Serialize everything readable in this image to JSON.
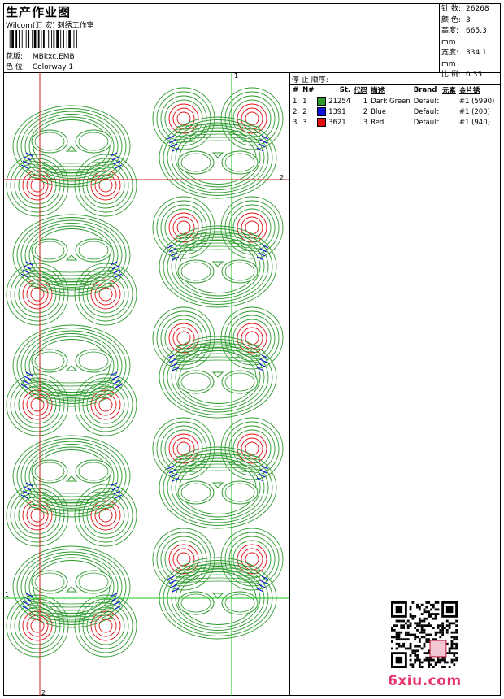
{
  "header": {
    "title": "生产作业图",
    "company": "Wilcom(汇 宏) 刺绣工作室",
    "design_label": "花版:",
    "design_value": "MBkxc.EMB",
    "colorway_label": "色 位:",
    "colorway_value": "Colorway 1"
  },
  "stats": [
    {
      "label": "针 数:",
      "value": "26268"
    },
    {
      "label": "颜 色:",
      "value": "3"
    },
    {
      "label": "高度:",
      "value": "665.3 mm"
    },
    {
      "label": "宽度:",
      "value": "334.1 mm"
    },
    {
      "label": "比 例:",
      "value": "0.35"
    }
  ],
  "sequence": {
    "heading": "停 止 顺序:",
    "columns": [
      "#",
      "N#",
      "St.",
      "代码",
      "描述",
      "Brand",
      "元素",
      "金片锈"
    ],
    "rows": [
      {
        "num": "1.",
        "n": "1",
        "color": "#2e9a2e",
        "st": "21254",
        "code": "1",
        "desc": "Dark Green",
        "brand": "Default",
        "elem": "",
        "sequin": "#1 (5990)"
      },
      {
        "num": "2.",
        "n": "2",
        "color": "#1010e0",
        "st": "1391",
        "code": "2",
        "desc": "Blue",
        "brand": "Default",
        "elem": "",
        "sequin": "#1 (200)"
      },
      {
        "num": "3.",
        "n": "3",
        "color": "#e01010",
        "st": "3621",
        "code": "3",
        "desc": "Red",
        "brand": "Default",
        "elem": "",
        "sequin": "#1 (940)"
      }
    ]
  },
  "guides": {
    "marker_1": "1",
    "marker_2": "2"
  },
  "colors": {
    "green": "#2e9a2e",
    "blue": "#1010e0",
    "red": "#e01010",
    "guide_red": "#d01818",
    "guide_green": "#19c419"
  },
  "watermark": "6xiu.com"
}
